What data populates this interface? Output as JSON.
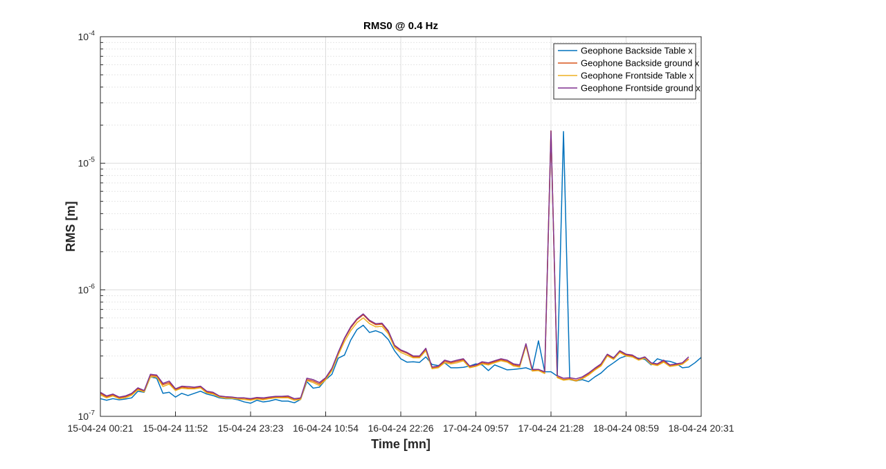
{
  "chart_data": {
    "type": "line",
    "title": "RMS0 @ 0.4 Hz",
    "xlabel": "Time [mn]",
    "ylabel": "RMS [m]",
    "yscale": "log",
    "ylim": [
      1e-07,
      0.0001
    ],
    "y_ticks": [
      {
        "value": 1e-07,
        "base": "10",
        "exp": "-7"
      },
      {
        "value": 1e-06,
        "base": "10",
        "exp": "-6"
      },
      {
        "value": 1e-05,
        "base": "10",
        "exp": "-5"
      },
      {
        "value": 0.0001,
        "base": "10",
        "exp": "-4"
      }
    ],
    "x_ticks": [
      "15-04-24 00:21",
      "15-04-24 11:52",
      "15-04-24 23:23",
      "16-04-24 10:54",
      "16-04-24 22:26",
      "17-04-24 09:57",
      "17-04-24 21:28",
      "18-04-24 08:59",
      "18-04-24 20:31"
    ],
    "grid": true,
    "legend_position": "top-right",
    "series": [
      {
        "name": "Geophone Backside Table x",
        "color": "#0072BD",
        "values": [
          1.38e-07,
          1.34e-07,
          1.38e-07,
          1.35e-07,
          1.37e-07,
          1.4e-07,
          1.58e-07,
          1.55e-07,
          2.05e-07,
          2e-07,
          1.52e-07,
          1.55e-07,
          1.42e-07,
          1.52e-07,
          1.46e-07,
          1.52e-07,
          1.58e-07,
          1.5e-07,
          1.46e-07,
          1.4e-07,
          1.38e-07,
          1.38e-07,
          1.35e-07,
          1.3e-07,
          1.27e-07,
          1.34e-07,
          1.3e-07,
          1.32e-07,
          1.36e-07,
          1.32e-07,
          1.32e-07,
          1.28e-07,
          1.36e-07,
          1.88e-07,
          1.67e-07,
          1.7e-07,
          1.95e-07,
          2.15e-07,
          2.88e-07,
          3.05e-07,
          4e-07,
          4.85e-07,
          5.25e-07,
          4.6e-07,
          4.75e-07,
          4.55e-07,
          4.05e-07,
          3.3e-07,
          2.85e-07,
          2.68e-07,
          2.7e-07,
          2.67e-07,
          2.95e-07,
          2.57e-07,
          2.52e-07,
          2.65e-07,
          2.42e-07,
          2.42e-07,
          2.44e-07,
          2.5e-07,
          2.6e-07,
          2.55e-07,
          2.3e-07,
          2.55e-07,
          2.44e-07,
          2.33e-07,
          2.35e-07,
          2.38e-07,
          2.42e-07,
          2.32e-07,
          3.95e-07,
          2.25e-07,
          2.25e-07,
          2.08e-07,
          1.78e-05,
          1.95e-07,
          1.9e-07,
          1.95e-07,
          1.88e-07,
          2.05e-07,
          2.2e-07,
          2.45e-07,
          2.65e-07,
          2.88e-07,
          3e-07,
          2.95e-07,
          2.88e-07,
          2.82e-07,
          2.55e-07,
          2.85e-07,
          2.75e-07,
          2.72e-07,
          2.62e-07,
          2.42e-07,
          2.45e-07,
          2.65e-07,
          2.92e-07
        ]
      },
      {
        "name": "Geophone Backside ground x",
        "color": "#D95319",
        "values": [
          1.52e-07,
          1.42e-07,
          1.48e-07,
          1.4e-07,
          1.43e-07,
          1.5e-07,
          1.65e-07,
          1.58e-07,
          2.1e-07,
          2.08e-07,
          1.78e-07,
          1.85e-07,
          1.62e-07,
          1.7e-07,
          1.68e-07,
          1.67e-07,
          1.7e-07,
          1.55e-07,
          1.52e-07,
          1.43e-07,
          1.4e-07,
          1.4e-07,
          1.38e-07,
          1.37e-07,
          1.36e-07,
          1.39e-07,
          1.37e-07,
          1.4e-07,
          1.42e-07,
          1.42e-07,
          1.42e-07,
          1.35e-07,
          1.38e-07,
          1.95e-07,
          1.9e-07,
          1.8e-07,
          1.98e-07,
          2.35e-07,
          3.15e-07,
          4.1e-07,
          5e-07,
          5.8e-07,
          6.35e-07,
          5.65e-07,
          5.3e-07,
          5.35e-07,
          4.65e-07,
          3.6e-07,
          3.3e-07,
          3.15e-07,
          2.95e-07,
          2.95e-07,
          3.4e-07,
          2.4e-07,
          2.45e-07,
          2.72e-07,
          2.65e-07,
          2.72e-07,
          2.8e-07,
          2.45e-07,
          2.5e-07,
          2.65e-07,
          2.6e-07,
          2.7e-07,
          2.8e-07,
          2.72e-07,
          2.55e-07,
          2.5e-07,
          3.7e-07,
          2.3e-07,
          2.32e-07,
          2.2e-07,
          1.8e-05,
          2.05e-07,
          1.95e-07,
          1.98e-07,
          1.92e-07,
          2e-07,
          2.15e-07,
          2.35e-07,
          2.55e-07,
          3.05e-07,
          2.85e-07,
          3.25e-07,
          3.05e-07,
          3e-07,
          2.8e-07,
          2.9e-07,
          2.6e-07,
          2.55e-07,
          2.72e-07,
          2.5e-07,
          2.55e-07,
          2.6e-07,
          2.85e-07
        ]
      },
      {
        "name": "Geophone Frontside Table x",
        "color": "#EDB120",
        "values": [
          1.48e-07,
          1.4e-07,
          1.45e-07,
          1.38e-07,
          1.4e-07,
          1.47e-07,
          1.62e-07,
          1.56e-07,
          2.05e-07,
          2.05e-07,
          1.72e-07,
          1.8e-07,
          1.6e-07,
          1.67e-07,
          1.65e-07,
          1.65e-07,
          1.68e-07,
          1.53e-07,
          1.5e-07,
          1.42e-07,
          1.39e-07,
          1.39e-07,
          1.37e-07,
          1.36e-07,
          1.34e-07,
          1.37e-07,
          1.35e-07,
          1.38e-07,
          1.4e-07,
          1.4e-07,
          1.4e-07,
          1.34e-07,
          1.36e-07,
          1.92e-07,
          1.85e-07,
          1.75e-07,
          1.95e-07,
          2.3e-07,
          3.05e-07,
          3.9e-07,
          4.75e-07,
          5.5e-07,
          6e-07,
          5.4e-07,
          5.1e-07,
          5.15e-07,
          4.5e-07,
          3.5e-07,
          3.2e-07,
          3.05e-07,
          2.9e-07,
          2.9e-07,
          3.3e-07,
          2.38e-07,
          2.42e-07,
          2.65e-07,
          2.6e-07,
          2.65e-07,
          2.75e-07,
          2.42e-07,
          2.48e-07,
          2.6e-07,
          2.55e-07,
          2.65e-07,
          2.75e-07,
          2.68e-07,
          2.5e-07,
          2.45e-07,
          3.6e-07,
          2.28e-07,
          2.3e-07,
          2.18e-07,
          1.8e-05,
          2.02e-07,
          1.93e-07,
          1.96e-07,
          1.9e-07,
          1.98e-07,
          2.12e-07,
          2.32e-07,
          2.5e-07,
          3e-07,
          2.82e-07,
          3.2e-07,
          3e-07,
          2.95e-07,
          2.78e-07,
          2.88e-07,
          2.58e-07,
          2.52e-07,
          2.68e-07,
          2.48e-07,
          2.52e-07,
          2.58e-07,
          2.82e-07
        ]
      },
      {
        "name": "Geophone Frontside ground x",
        "color": "#7E2F8E",
        "values": [
          1.55e-07,
          1.45e-07,
          1.5e-07,
          1.42e-07,
          1.45e-07,
          1.52e-07,
          1.68e-07,
          1.6e-07,
          2.15e-07,
          2.12e-07,
          1.82e-07,
          1.9e-07,
          1.65e-07,
          1.73e-07,
          1.72e-07,
          1.7e-07,
          1.73e-07,
          1.58e-07,
          1.55e-07,
          1.45e-07,
          1.43e-07,
          1.42e-07,
          1.4e-07,
          1.4e-07,
          1.38e-07,
          1.41e-07,
          1.4e-07,
          1.42e-07,
          1.44e-07,
          1.44e-07,
          1.45e-07,
          1.38e-07,
          1.4e-07,
          2e-07,
          1.95e-07,
          1.85e-07,
          2.02e-07,
          2.4e-07,
          3.2e-07,
          4.15e-07,
          5.1e-07,
          5.9e-07,
          6.45e-07,
          5.75e-07,
          5.4e-07,
          5.45e-07,
          4.75e-07,
          3.65e-07,
          3.35e-07,
          3.2e-07,
          3e-07,
          3e-07,
          3.45e-07,
          2.45e-07,
          2.5e-07,
          2.78e-07,
          2.7e-07,
          2.78e-07,
          2.85e-07,
          2.5e-07,
          2.55e-07,
          2.7e-07,
          2.65e-07,
          2.75e-07,
          2.85e-07,
          2.78e-07,
          2.6e-07,
          2.55e-07,
          3.75e-07,
          2.35e-07,
          2.35e-07,
          2.25e-07,
          1.8e-05,
          2.1e-07,
          2e-07,
          2.02e-07,
          1.98e-07,
          2.05e-07,
          2.2e-07,
          2.4e-07,
          2.6e-07,
          3.1e-07,
          2.9e-07,
          3.3e-07,
          3.1e-07,
          3.05e-07,
          2.85e-07,
          2.95e-07,
          2.65e-07,
          2.6e-07,
          2.78e-07,
          2.55e-07,
          2.6e-07,
          2.65e-07,
          2.95e-07
        ]
      }
    ]
  }
}
